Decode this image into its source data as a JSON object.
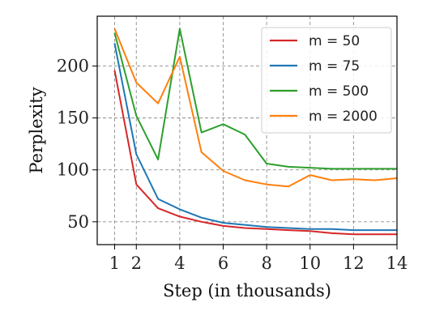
{
  "chart_data": {
    "type": "line",
    "xlabel": "Step (in thousands)",
    "ylabel": "Perplexity",
    "xlim": [
      0.2,
      14
    ],
    "ylim": [
      28,
      248
    ],
    "xticks": [
      1,
      2,
      4,
      6,
      8,
      10,
      12,
      14
    ],
    "yticks": [
      50,
      100,
      150,
      200
    ],
    "grid": true,
    "grid_style": "dashed",
    "legend_position": "top-right",
    "x": [
      1,
      2,
      3,
      4,
      5,
      6,
      7,
      8,
      9,
      10,
      11,
      12,
      13,
      14
    ],
    "series": [
      {
        "name": "m = 50",
        "color": "#d62728",
        "values": [
          196,
          86,
          63,
          55,
          50,
          46,
          44,
          43,
          42,
          41,
          39,
          38,
          38,
          38
        ]
      },
      {
        "name": "m = 75",
        "color": "#1f77b4",
        "values": [
          222,
          115,
          72,
          62,
          54,
          49,
          47,
          45,
          44,
          43,
          43,
          42,
          42,
          42
        ]
      },
      {
        "name": "m = 500",
        "color": "#2ca02c",
        "values": [
          232,
          152,
          110,
          236,
          136,
          144,
          134,
          106,
          103,
          102,
          101,
          101,
          101,
          101
        ]
      },
      {
        "name": "m = 2000",
        "color": "#ff7f0e",
        "values": [
          236,
          184,
          164,
          209,
          117,
          99,
          90,
          86,
          84,
          95,
          90,
          91,
          90,
          92
        ]
      }
    ]
  }
}
